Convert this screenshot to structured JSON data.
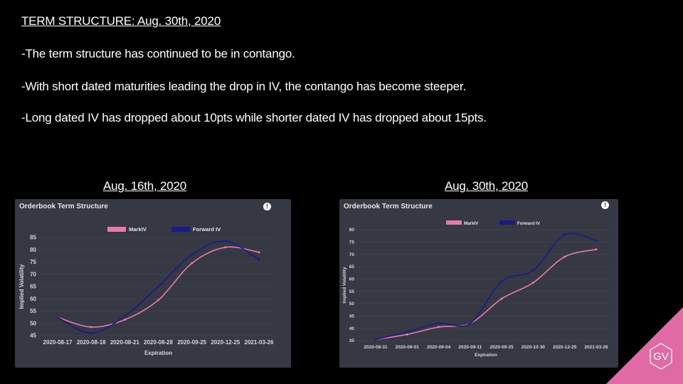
{
  "slide": {
    "title": "TERM STRUCTURE: Aug. 30th, 2020",
    "bullets": [
      "-The term structure has continued to be in contango.",
      "-With short dated maturities leading the drop in IV, the contango has become steeper.",
      "-Long dated IV has dropped about 10pts while shorter dated IV has dropped about 15pts."
    ]
  },
  "logo_text": "GV",
  "colors": {
    "mark": "#e87aac",
    "forward": "#1a1a8c",
    "panel": "#363843",
    "accent": "#e06aa4"
  },
  "chart_data": [
    {
      "caption": "Aug. 16th, 2020",
      "panel_title": "Orderbook Term Structure",
      "type": "line",
      "categories": [
        "2020-08-17",
        "2020-08-18",
        "2020-08-21",
        "2020-08-28",
        "2020-09-25",
        "2020-12-25",
        "2021-03-26"
      ],
      "series": [
        {
          "name": "MarkIV",
          "values": [
            52.5,
            48.5,
            51.5,
            59.5,
            74.5,
            81,
            79
          ]
        },
        {
          "name": "Forward IV",
          "values": [
            52.5,
            46,
            53,
            65,
            78,
            83.5,
            76
          ]
        }
      ],
      "xlabel": "Expiration",
      "ylabel": "Implied Volatility",
      "yticks": [
        45,
        50,
        55,
        60,
        65,
        70,
        75,
        80,
        85
      ],
      "ylim": [
        45,
        85
      ]
    },
    {
      "caption": "Aug. 30th, 2020",
      "panel_title": "Orderbook Term Structure",
      "type": "line",
      "categories": [
        "2020-08-31",
        "2020-09-01",
        "2020-09-04",
        "2020-09-11",
        "2020-09-25",
        "2020-10-30",
        "2020-12-25",
        "2021-03-26"
      ],
      "series": [
        {
          "name": "MarkIV",
          "values": [
            35.5,
            37.5,
            40.5,
            42,
            52,
            58.5,
            69,
            72
          ]
        },
        {
          "name": "Forward IV",
          "values": [
            35.5,
            38.5,
            42,
            42,
            59,
            63.5,
            78,
            75.5
          ]
        }
      ],
      "xlabel": "Expiration",
      "ylabel": "Implied Volatility",
      "yticks": [
        35,
        40,
        45,
        50,
        55,
        60,
        65,
        70,
        75,
        80
      ],
      "ylim": [
        35,
        80
      ]
    }
  ]
}
